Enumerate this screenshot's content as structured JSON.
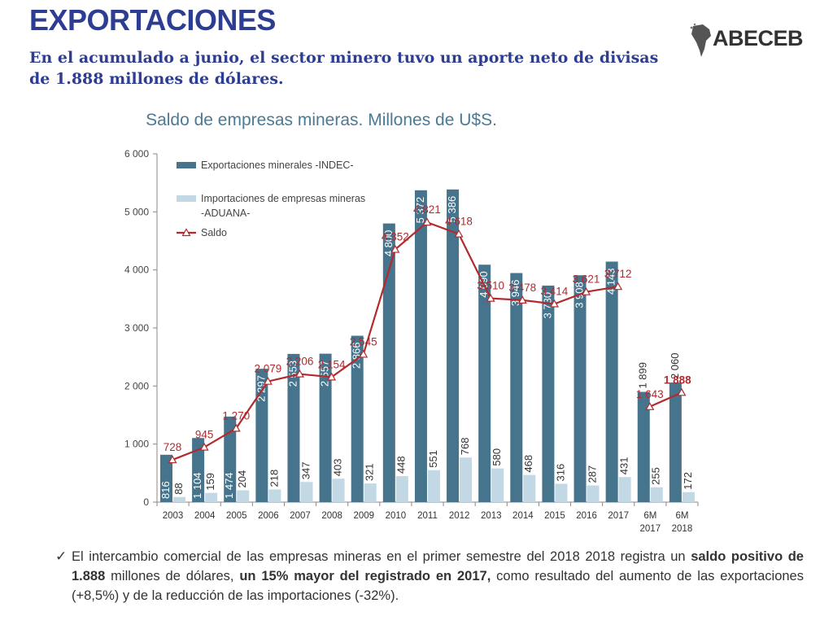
{
  "header": {
    "title": "EXPORTACIONES",
    "subtitle": "En el acumulado a junio, el sector minero tuvo un aporte neto de divisas de 1.888 millones de dólares.",
    "logo_text": "ABECEB"
  },
  "chart_data": {
    "type": "bar",
    "title": "Saldo de empresas mineras. Millones de U$S.",
    "categories": [
      "2003",
      "2004",
      "2005",
      "2006",
      "2007",
      "2008",
      "2009",
      "2010",
      "2011",
      "2012",
      "2013",
      "2014",
      "2015",
      "2016",
      "2017",
      "6M 2017",
      "6M 2018"
    ],
    "y_ticks": [
      "0",
      "1 000",
      "2 000",
      "3 000",
      "4 000",
      "5 000",
      "6 000"
    ],
    "ylim": [
      0,
      6000
    ],
    "legend_position": "top-left",
    "series": [
      {
        "name": "Exportaciones minerales -INDEC-",
        "type": "bar",
        "color": "#46748c",
        "values": [
          816,
          1104,
          1474,
          2297,
          2553,
          2557,
          2866,
          4800,
          5372,
          5386,
          4090,
          3946,
          3730,
          3908,
          4143,
          1899,
          2060
        ],
        "labels": [
          "816",
          "1 104",
          "1 474",
          "2 297",
          "2 553",
          "2 557",
          "2 866",
          "4 800",
          "5 372",
          "5 386",
          "4 090",
          "3 946",
          "3 730",
          "3 908",
          "4 143",
          "1 899",
          "2 060"
        ]
      },
      {
        "name": "Importaciones de empresas mineras -ADUANA-",
        "type": "bar",
        "color": "#c2d8e4",
        "values": [
          88,
          159,
          204,
          218,
          347,
          403,
          321,
          448,
          551,
          768,
          580,
          468,
          316,
          287,
          431,
          255,
          172
        ],
        "labels": [
          "88",
          "159",
          "204",
          "218",
          "347",
          "403",
          "321",
          "448",
          "551",
          "768",
          "580",
          "468",
          "316",
          "287",
          "431",
          "255",
          "172"
        ]
      },
      {
        "name": "Saldo",
        "type": "line",
        "color": "#b22a2e",
        "values": [
          728,
          945,
          1270,
          2079,
          2206,
          2154,
          2545,
          4352,
          4821,
          4618,
          3510,
          3478,
          3414,
          3621,
          3712,
          1643,
          1888
        ],
        "labels": [
          "728",
          "945",
          "1 270",
          "2 079",
          "2 206",
          "2 154",
          "2 545",
          "4 352",
          "4 821",
          "4 618",
          "3 510",
          "3 478",
          "3 414",
          "3 621",
          "3 712",
          "1 643",
          "1 888"
        ]
      }
    ]
  },
  "footer": {
    "check": "✓",
    "t1": "El intercambio comercial de las empresas mineras en el primer semestre del 2018 2018 registra un ",
    "b1": "saldo positivo de 1.888",
    "t2": " millones de dólares, ",
    "b2": "un 15% mayor del registrado en 2017,",
    "t3": " como resultado del aumento de las exportaciones (+8,5%) y de la reducción de las importaciones (-32%)."
  }
}
